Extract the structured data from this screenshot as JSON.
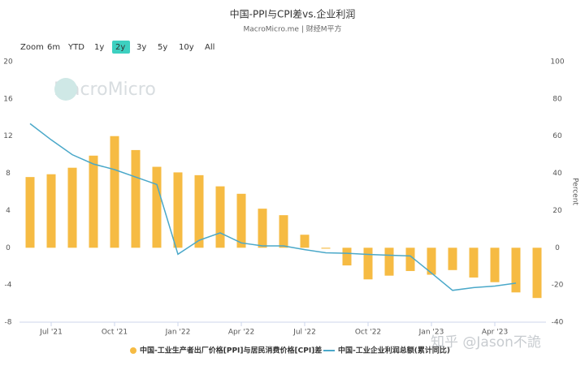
{
  "chart_data": {
    "type": "bar-line",
    "title": "中国-PPI与CPI差vs.企业利润",
    "subtitle": "MacroMicro.me | 财经M平方",
    "zoom_label": "Zoom",
    "zoom_buttons": [
      "6m",
      "YTD",
      "1y",
      "2y",
      "3y",
      "5y",
      "10y",
      "All"
    ],
    "zoom_active": "2y",
    "watermark": "MacroMicro",
    "source_watermark": "知乎 @Jason不詭",
    "y2_label": "Percent",
    "categories": [
      null,
      "Jul '21",
      null,
      null,
      "Oct '21",
      null,
      null,
      "Jan '22",
      null,
      null,
      "Apr '22",
      null,
      null,
      "Jul '22",
      null,
      null,
      "Oct '22",
      null,
      null,
      "Jan '23",
      null,
      null,
      "Apr '23",
      null,
      null
    ],
    "series": [
      {
        "name": "中国-工业生产者出厂价格[PPI]与居民消费价格[CPI]差",
        "color": "#f6bb43",
        "axis": "y",
        "values": [
          7.6,
          7.9,
          8.6,
          9.9,
          12.0,
          10.5,
          8.7,
          8.1,
          7.8,
          6.6,
          5.8,
          4.2,
          3.5,
          1.4,
          -0.1,
          -1.9,
          -3.4,
          -3.0,
          -2.5,
          -2.9,
          -2.4,
          -3.2,
          -3.7,
          -4.8,
          -5.4
        ]
      },
      {
        "name": "中国-工业企业利润总额(累计同比)",
        "color": "#4aa8c9",
        "axis": "y2",
        "values": [
          66.7,
          58,
          50,
          45,
          42,
          38,
          34,
          -3.5,
          4,
          8,
          2.6,
          1,
          1,
          -1,
          -2.7,
          -3,
          -3.6,
          -4,
          -4.4,
          -13.6,
          -22.9,
          -21.4,
          -20.6,
          -19,
          null
        ]
      }
    ],
    "ylim": [
      -8,
      20
    ],
    "yticks": [
      -8,
      -4,
      0,
      4,
      8,
      12,
      16,
      20
    ],
    "y2lim": [
      -40,
      100
    ],
    "y2ticks": [
      -40,
      -20,
      0,
      20,
      40,
      60,
      80,
      100
    ],
    "grid": false
  }
}
